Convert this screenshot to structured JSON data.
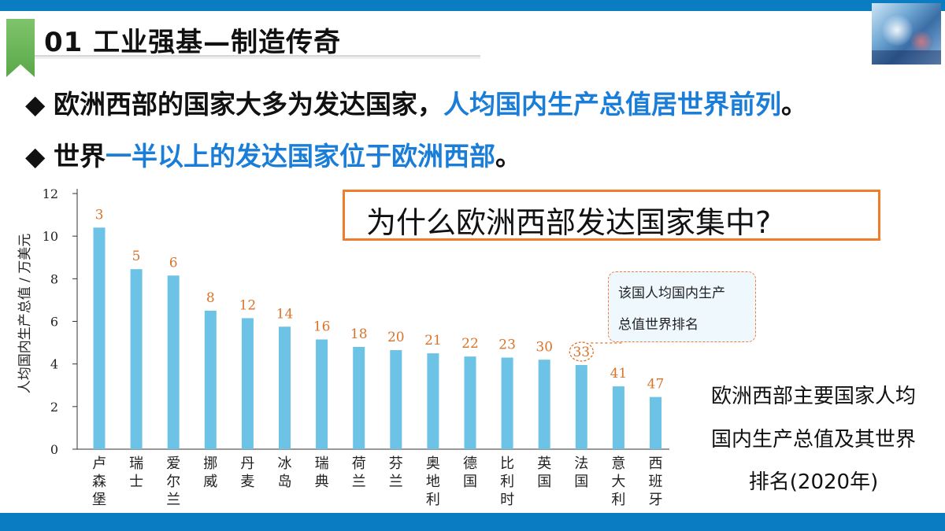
{
  "header": {
    "title": "01 工业强基—制造传奇"
  },
  "bullets": [
    {
      "marker": "◆",
      "plain": "欧洲西部的国家大多为发达国家，",
      "highlight": "人均国内生产总值居世界前列",
      "tail": "。"
    },
    {
      "marker": "◆",
      "plain": "世界",
      "highlight": "一半以上的发达国家位于欧洲西部",
      "tail": "。"
    }
  ],
  "question": "为什么欧洲西部发达国家集中?",
  "callout": {
    "line1": "该国人均国内生产",
    "line2": "总值世界排名"
  },
  "caption": {
    "line1": "欧洲西部主要国家人均",
    "line2": "国内生产总值及其世界",
    "line3": "排名(2020年)"
  },
  "colors": {
    "accent_blue": "#0a7cc1",
    "highlight_blue": "#1a7ed8",
    "bar": "#6cc3e6",
    "rank_label": "#d9742a",
    "question_border": "#ef7d2c",
    "ribbon_green": "#6bb55a"
  },
  "chart_data": {
    "type": "bar",
    "ylabel": "人均国内生产总值 / 万美元",
    "ylim": [
      0,
      12
    ],
    "yticks": [
      0,
      2,
      4,
      6,
      8,
      10,
      12
    ],
    "categories": [
      "卢森堡",
      "瑞士",
      "爱尔兰",
      "挪威",
      "丹麦",
      "冰岛",
      "瑞典",
      "荷兰",
      "芬兰",
      "奥地利",
      "德国",
      "比利时",
      "英国",
      "法国",
      "意大利",
      "西班牙"
    ],
    "values": [
      10.4,
      8.45,
      8.15,
      6.5,
      6.15,
      5.75,
      5.15,
      4.8,
      4.65,
      4.5,
      4.35,
      4.3,
      4.2,
      3.95,
      2.95,
      2.45
    ],
    "rank_labels": [
      "3",
      "5",
      "6",
      "8",
      "12",
      "14",
      "16",
      "18",
      "20",
      "21",
      "22",
      "23",
      "30",
      "33",
      "41",
      "47"
    ],
    "circled_rank": "33",
    "grid": false
  }
}
